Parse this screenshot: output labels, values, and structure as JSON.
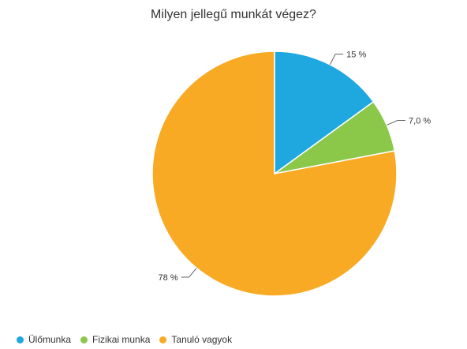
{
  "chart_data": {
    "type": "pie",
    "title": "Milyen jellegű munkát végez?",
    "categories": [
      "Ülőmunka",
      "Fizikai munka",
      "Tanuló vagyok"
    ],
    "values": [
      15,
      7.0,
      78
    ],
    "data_labels": [
      "15 %",
      "7,0 %",
      "78 %"
    ],
    "colors": [
      "#1fa7e0",
      "#8bc84a",
      "#f9aa25"
    ],
    "legend_position": "bottom-left"
  }
}
